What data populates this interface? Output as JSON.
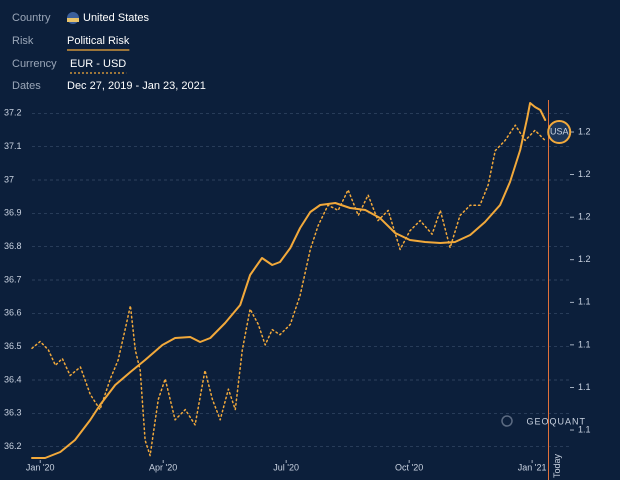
{
  "header": {
    "fields": [
      {
        "label": "Country",
        "value": "United States"
      },
      {
        "label": "Risk",
        "value": "Political Risk"
      },
      {
        "label": "Currency",
        "value": "EUR - USD"
      },
      {
        "label": "Dates",
        "value": "Dec 27, 2019 - Jan 23, 2021"
      }
    ]
  },
  "chart_data": {
    "type": "line",
    "xlim": [
      -0.2,
      12.9
    ],
    "xticks": [
      {
        "value": 0,
        "label": "Jan '20"
      },
      {
        "value": 3,
        "label": "Apr '20"
      },
      {
        "value": 6,
        "label": "Jul '20"
      },
      {
        "value": 9,
        "label": "Oct '20"
      },
      {
        "value": 12,
        "label": "Jan '21"
      }
    ],
    "ylim": [
      36.16,
      37.24
    ],
    "yticks": [
      36.2,
      36.3,
      36.4,
      36.5,
      36.6,
      36.7,
      36.8,
      36.9,
      37,
      37.1,
      37.2
    ],
    "y2lim": [
      1.0424,
      1.2538
    ],
    "y2ticks": [
      {
        "value": 1.06,
        "label": "1.1"
      },
      {
        "value": 1.085,
        "label": "1.1"
      },
      {
        "value": 1.11,
        "label": "1.1"
      },
      {
        "value": 1.135,
        "label": "1.1"
      },
      {
        "value": 1.16,
        "label": "1.2"
      },
      {
        "value": 1.185,
        "label": "1.2"
      },
      {
        "value": 1.21,
        "label": "1.2"
      },
      {
        "value": 1.235,
        "label": "1.2"
      }
    ],
    "grid": true,
    "today": {
      "x": 12.4,
      "label": "Today"
    },
    "end_label": "USA",
    "watermark": "GEOQUANT",
    "series": [
      {
        "color": "#f2a93b",
        "style": "solid",
        "x": [
          -0.2,
          0.12,
          0.49,
          0.85,
          1.22,
          1.46,
          1.83,
          2.2,
          2.56,
          2.98,
          3.29,
          3.66,
          3.9,
          4.15,
          4.51,
          4.88,
          5.12,
          5.41,
          5.66,
          5.85,
          6.1,
          6.34,
          6.59,
          6.83,
          7.2,
          7.56,
          7.93,
          8.29,
          8.66,
          9.02,
          9.39,
          9.76,
          10.12,
          10.49,
          10.85,
          11.22,
          11.46,
          11.71,
          11.88,
          11.95,
          12.07,
          12.2,
          12.32
        ],
        "values": [
          36.166,
          36.166,
          36.184,
          36.22,
          36.28,
          36.325,
          36.385,
          36.424,
          36.46,
          36.505,
          36.526,
          36.529,
          36.514,
          36.526,
          36.571,
          36.625,
          36.715,
          36.766,
          36.745,
          36.754,
          36.796,
          36.856,
          36.904,
          36.925,
          36.931,
          36.916,
          36.91,
          36.886,
          36.841,
          36.82,
          36.814,
          36.811,
          36.814,
          36.835,
          36.874,
          36.925,
          36.994,
          37.09,
          37.186,
          37.231,
          37.219,
          37.21,
          37.18
        ]
      },
      {
        "color": "#f2a93b",
        "style": "dotted",
        "axis": "y2",
        "x": [
          -0.2,
          0,
          0.2,
          0.37,
          0.54,
          0.73,
          0.98,
          1.22,
          1.46,
          1.71,
          1.9,
          2.07,
          2.2,
          2.32,
          2.44,
          2.56,
          2.68,
          2.88,
          3.05,
          3.29,
          3.54,
          3.78,
          4.02,
          4.2,
          4.39,
          4.59,
          4.76,
          4.93,
          5.12,
          5.32,
          5.49,
          5.66,
          5.85,
          6.1,
          6.34,
          6.59,
          6.78,
          7.02,
          7.27,
          7.51,
          7.76,
          8.0,
          8.24,
          8.49,
          8.78,
          9.02,
          9.27,
          9.56,
          9.76,
          10.0,
          10.24,
          10.49,
          10.73,
          10.93,
          11.1,
          11.34,
          11.59,
          11.83,
          12.07,
          12.32
        ],
        "values": [
          1.108,
          1.112,
          1.107,
          1.098,
          1.102,
          1.092,
          1.097,
          1.081,
          1.072,
          1.09,
          1.101,
          1.119,
          1.133,
          1.107,
          1.095,
          1.054,
          1.045,
          1.078,
          1.09,
          1.066,
          1.072,
          1.063,
          1.095,
          1.078,
          1.066,
          1.084,
          1.072,
          1.107,
          1.131,
          1.122,
          1.11,
          1.119,
          1.116,
          1.122,
          1.139,
          1.166,
          1.18,
          1.192,
          1.189,
          1.201,
          1.186,
          1.198,
          1.183,
          1.189,
          1.166,
          1.177,
          1.183,
          1.175,
          1.189,
          1.167,
          1.186,
          1.192,
          1.192,
          1.204,
          1.224,
          1.23,
          1.239,
          1.23,
          1.236,
          1.23
        ]
      }
    ]
  }
}
